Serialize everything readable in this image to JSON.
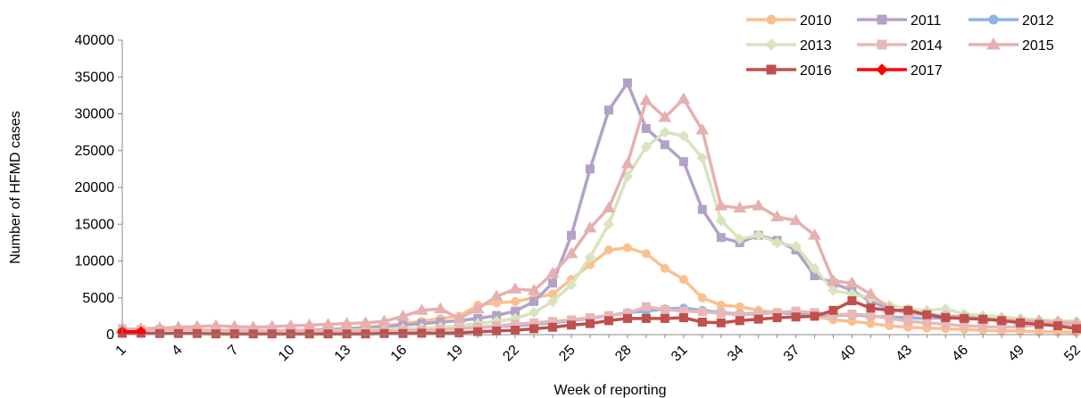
{
  "chart_data": {
    "type": "line",
    "title": "",
    "xlabel": "Week of reporting",
    "ylabel": "Number of HFMD cases",
    "ylim": [
      0,
      40000
    ],
    "yticks": [
      0,
      5000,
      10000,
      15000,
      20000,
      25000,
      30000,
      35000,
      40000
    ],
    "xlim": [
      1,
      52
    ],
    "xticks": [
      1,
      4,
      7,
      10,
      13,
      16,
      19,
      22,
      25,
      28,
      31,
      34,
      37,
      40,
      43,
      46,
      49,
      52
    ],
    "grid": false,
    "legend_position": "top-right",
    "x": [
      1,
      2,
      3,
      4,
      5,
      6,
      7,
      8,
      9,
      10,
      11,
      12,
      13,
      14,
      15,
      16,
      17,
      18,
      19,
      20,
      21,
      22,
      23,
      24,
      25,
      26,
      27,
      28,
      29,
      30,
      31,
      32,
      33,
      34,
      35,
      36,
      37,
      38,
      39,
      40,
      41,
      42,
      43,
      44,
      45,
      46,
      47,
      48,
      49,
      50,
      51,
      52
    ],
    "series": [
      {
        "name": "2010",
        "color": "#FAC090",
        "marker": "circle",
        "values": [
          300,
          300,
          350,
          400,
          400,
          450,
          450,
          500,
          500,
          550,
          600,
          700,
          800,
          1000,
          1200,
          1500,
          1800,
          2200,
          2500,
          4000,
          4300,
          4500,
          5000,
          5500,
          7500,
          9500,
          11500,
          11800,
          11000,
          9000,
          7500,
          5000,
          4000,
          3800,
          3300,
          3000,
          3000,
          2500,
          2000,
          1800,
          1500,
          1200,
          1000,
          900,
          800,
          700,
          600,
          500,
          500,
          400,
          400,
          300
        ]
      },
      {
        "name": "2011",
        "color": "#B3A2C7",
        "marker": "square",
        "values": [
          200,
          250,
          300,
          300,
          350,
          400,
          400,
          450,
          500,
          550,
          600,
          700,
          800,
          900,
          1100,
          1300,
          1500,
          1700,
          1900,
          2200,
          2600,
          3200,
          4500,
          7000,
          13500,
          22500,
          30500,
          34200,
          28000,
          25800,
          23500,
          17000,
          13200,
          12500,
          13500,
          12800,
          11500,
          8000,
          7000,
          6000,
          4500,
          3500,
          3000,
          2800,
          2500,
          2500,
          2200,
          2000,
          1700,
          1500,
          1300,
          1100
        ]
      },
      {
        "name": "2012",
        "color": "#8EB4E3",
        "marker": "circle",
        "values": [
          200,
          200,
          250,
          250,
          300,
          300,
          300,
          350,
          350,
          400,
          400,
          450,
          450,
          500,
          550,
          600,
          700,
          800,
          900,
          1000,
          1100,
          1200,
          1400,
          1600,
          1900,
          2200,
          2600,
          3000,
          3200,
          3500,
          3600,
          3300,
          3000,
          2800,
          2900,
          3000,
          2800,
          2700,
          2600,
          2700,
          2500,
          2400,
          2300,
          2200,
          2300,
          2500,
          2400,
          2200,
          2000,
          1800,
          1500,
          1200
        ]
      },
      {
        "name": "2013",
        "color": "#D7E4BD",
        "marker": "diamond",
        "values": [
          300,
          300,
          300,
          350,
          350,
          400,
          400,
          450,
          450,
          500,
          500,
          550,
          600,
          650,
          700,
          800,
          900,
          1000,
          1200,
          1500,
          1800,
          2200,
          3000,
          4500,
          6800,
          10500,
          15000,
          21500,
          25500,
          27500,
          27000,
          24000,
          15500,
          13000,
          13500,
          12500,
          12000,
          9000,
          6000,
          5500,
          5000,
          4000,
          3500,
          3300,
          3500,
          2800,
          2600,
          2400,
          2200,
          2000,
          1900,
          1800
        ]
      },
      {
        "name": "2014",
        "color": "#E6B9B8",
        "marker": "square",
        "values": [
          800,
          700,
          700,
          650,
          650,
          600,
          600,
          600,
          550,
          550,
          550,
          500,
          500,
          500,
          500,
          550,
          600,
          700,
          800,
          1000,
          1200,
          1400,
          1600,
          1800,
          2000,
          2300,
          2600,
          2900,
          3800,
          3400,
          3200,
          3100,
          2900,
          2700,
          2800,
          3000,
          3200,
          3000,
          2700,
          2800,
          2600,
          2200,
          1800,
          1600,
          1400,
          1200,
          1100,
          1000,
          1100,
          1300,
          1500,
          1200
        ]
      },
      {
        "name": "2015",
        "color": "#E6B0B0",
        "marker": "triangle",
        "values": [
          700,
          800,
          900,
          1000,
          1100,
          1200,
          1100,
          1000,
          1100,
          1200,
          1300,
          1400,
          1500,
          1600,
          1800,
          2500,
          3300,
          3500,
          2200,
          3500,
          5200,
          6200,
          6000,
          8300,
          11000,
          14500,
          17200,
          23200,
          31800,
          29500,
          32000,
          27800,
          17500,
          17200,
          17500,
          16000,
          15500,
          13500,
          7300,
          7000,
          5500,
          3500,
          2900,
          2700,
          2500,
          2300,
          2100,
          2000,
          1900,
          1800,
          1700,
          1600
        ]
      },
      {
        "name": "2016",
        "color": "#C0504D",
        "marker": "square",
        "values": [
          200,
          200,
          150,
          150,
          150,
          100,
          100,
          100,
          100,
          100,
          100,
          100,
          100,
          100,
          150,
          150,
          200,
          200,
          250,
          400,
          500,
          600,
          800,
          1000,
          1300,
          1500,
          1900,
          2200,
          2200,
          2200,
          2300,
          1700,
          1600,
          1900,
          2100,
          2300,
          2400,
          2500,
          3300,
          4600,
          3600,
          3300,
          3300,
          2700,
          2300,
          2200,
          2100,
          1900,
          1600,
          1400,
          1200,
          800
        ]
      },
      {
        "name": "2017",
        "color": "#FF0000",
        "marker": "diamond",
        "values": [
          400,
          400,
          null,
          null,
          null,
          null,
          null,
          null,
          null,
          null,
          null,
          null,
          null,
          null,
          null,
          null,
          null,
          null,
          null,
          null,
          null,
          null,
          null,
          null,
          null,
          null,
          null,
          null,
          null,
          null,
          null,
          null,
          null,
          null,
          null,
          null,
          null,
          null,
          null,
          null,
          null,
          null,
          null,
          null,
          null,
          null,
          null,
          null,
          null,
          null,
          null,
          null
        ]
      }
    ]
  }
}
